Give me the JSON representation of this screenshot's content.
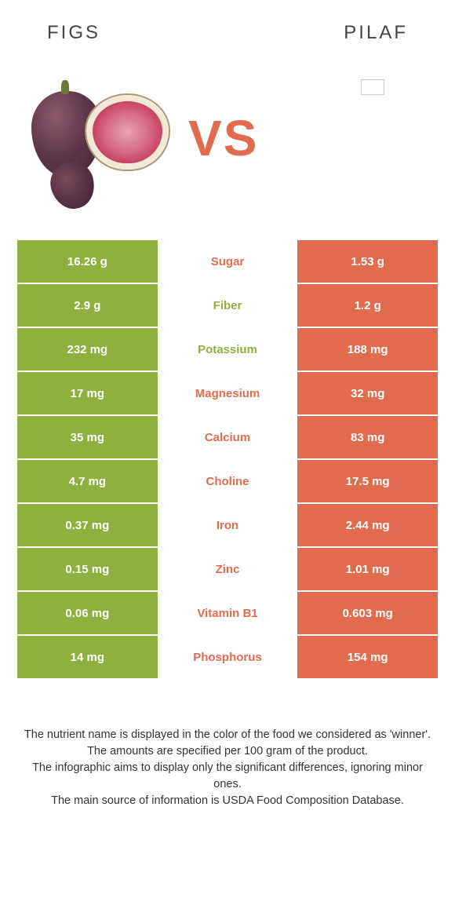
{
  "header": {
    "left_title": "FIGS",
    "right_title": "PILAF"
  },
  "vs_label": "VS",
  "colors": {
    "figs": "#8fb03e",
    "pilaf": "#e06b4e",
    "row_text_white": "#ffffff"
  },
  "rows": [
    {
      "nutrient": "Sugar",
      "left": "16.26 g",
      "right": "1.53 g",
      "winner": "pilaf"
    },
    {
      "nutrient": "Fiber",
      "left": "2.9 g",
      "right": "1.2 g",
      "winner": "figs"
    },
    {
      "nutrient": "Potassium",
      "left": "232 mg",
      "right": "188 mg",
      "winner": "figs"
    },
    {
      "nutrient": "Magnesium",
      "left": "17 mg",
      "right": "32 mg",
      "winner": "pilaf"
    },
    {
      "nutrient": "Calcium",
      "left": "35 mg",
      "right": "83 mg",
      "winner": "pilaf"
    },
    {
      "nutrient": "Choline",
      "left": "4.7 mg",
      "right": "17.5 mg",
      "winner": "pilaf"
    },
    {
      "nutrient": "Iron",
      "left": "0.37 mg",
      "right": "2.44 mg",
      "winner": "pilaf"
    },
    {
      "nutrient": "Zinc",
      "left": "0.15 mg",
      "right": "1.01 mg",
      "winner": "pilaf"
    },
    {
      "nutrient": "Vitamin B1",
      "left": "0.06 mg",
      "right": "0.603 mg",
      "winner": "pilaf"
    },
    {
      "nutrient": "Phosphorus",
      "left": "14 mg",
      "right": "154 mg",
      "winner": "pilaf"
    }
  ],
  "footer_lines": [
    "The nutrient name is displayed in the color of the food we considered as 'winner'.",
    "The amounts are specified per 100 gram of the product.",
    "The infographic aims to display only the significant differences, ignoring minor ones.",
    "The main source of information is USDA Food Composition Database."
  ]
}
